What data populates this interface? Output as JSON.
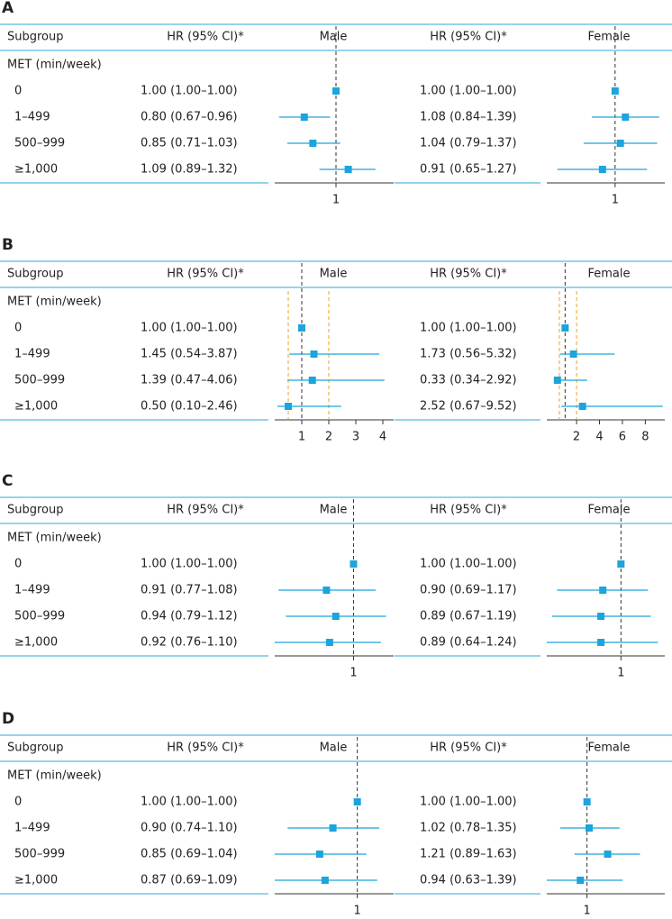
{
  "chart_data": [
    {
      "type": "forest",
      "label": "A",
      "subgroup_header": "Subgroup",
      "hr_header": "HR (95% CI)*",
      "group_label": "MET (min/week)",
      "categories": [
        "0",
        "1–499",
        "500–999",
        "≥1,000"
      ],
      "series": [
        {
          "name": "Male",
          "color": "#1ca4dc",
          "values": [
            1.0,
            0.8,
            0.85,
            1.09
          ],
          "lower": [
            1.0,
            0.67,
            0.71,
            0.89
          ],
          "upper": [
            1.0,
            0.96,
            1.03,
            1.32
          ],
          "value_labels": [
            "1.00 (1.00–1.00)",
            "0.80 (0.67–0.96)",
            "0.85 (0.71–1.03)",
            "1.09 (0.89–1.32)"
          ],
          "log_x": true,
          "xlim": [
            0.65,
            1.5
          ],
          "xticks": [
            1
          ],
          "reference": 1
        },
        {
          "name": "Female",
          "color": "#1ca4dc",
          "values": [
            1.0,
            1.08,
            1.04,
            0.91
          ],
          "lower": [
            1.0,
            0.84,
            0.79,
            0.65
          ],
          "upper": [
            1.0,
            1.39,
            1.37,
            1.27
          ],
          "value_labels": [
            "1.00 (1.00–1.00)",
            "1.08 (0.84–1.39)",
            "1.04 (0.79–1.37)",
            "0.91 (0.65–1.27)"
          ],
          "log_x": true,
          "xlim": [
            0.6,
            1.45
          ],
          "xticks": [
            1
          ],
          "reference": 1
        }
      ]
    },
    {
      "type": "forest",
      "label": "B",
      "subgroup_header": "Subgroup",
      "hr_header": "HR (95% CI)*",
      "group_label": "MET (min/week)",
      "categories": [
        "0",
        "1–499",
        "500–999",
        "≥1,000"
      ],
      "series": [
        {
          "name": "Male",
          "color": "#1ca4dc",
          "values": [
            1.0,
            1.45,
            1.39,
            0.5
          ],
          "lower": [
            1.0,
            0.54,
            0.47,
            0.1
          ],
          "upper": [
            1.0,
            3.87,
            4.06,
            2.46
          ],
          "value_labels": [
            "1.00 (1.00–1.00)",
            "1.45 (0.54–3.87)",
            "1.39 (0.47–4.06)",
            "0.50 (0.10–2.46)"
          ],
          "log_x": false,
          "xlim": [
            0,
            4.4
          ],
          "xticks": [
            1,
            2,
            3,
            4
          ],
          "reference": 1,
          "bounds": [
            0.5,
            2
          ],
          "bounds_color": "#f0a020"
        },
        {
          "name": "Female",
          "color": "#1ca4dc",
          "values": [
            1.0,
            1.73,
            0.33,
            2.52
          ],
          "lower": [
            1.0,
            0.56,
            0.34,
            0.67
          ],
          "upper": [
            1.0,
            5.32,
            2.92,
            9.52
          ],
          "value_labels": [
            "1.00 (1.00–1.00)",
            "1.73 (0.56–5.32)",
            "0.33 (0.34–2.92)",
            "2.52 (0.67–9.52)"
          ],
          "log_x": false,
          "xlim": [
            -0.6,
            9.7
          ],
          "xticks": [
            2,
            4,
            6,
            8
          ],
          "reference": 1,
          "bounds": [
            0.5,
            2
          ],
          "bounds_color": "#f0a020"
        }
      ]
    },
    {
      "type": "forest",
      "label": "C",
      "subgroup_header": "Subgroup",
      "hr_header": "HR (95% CI)*",
      "group_label": "MET (min/week)",
      "categories": [
        "0",
        "1–499",
        "500–999",
        "≥1,000"
      ],
      "series": [
        {
          "name": "Male",
          "color": "#1ca4dc",
          "values": [
            1.0,
            0.91,
            0.94,
            0.92
          ],
          "lower": [
            1.0,
            0.77,
            0.79,
            0.76
          ],
          "upper": [
            1.0,
            1.08,
            1.12,
            1.1
          ],
          "value_labels": [
            "1.00 (1.00–1.00)",
            "0.91 (0.77–1.08)",
            "0.94 (0.79–1.12)",
            "0.92 (0.76–1.10)"
          ],
          "log_x": true,
          "xlim": [
            0.76,
            1.15
          ],
          "xticks": [
            1
          ],
          "reference": 1
        },
        {
          "name": "Female",
          "color": "#1ca4dc",
          "values": [
            1.0,
            0.9,
            0.89,
            0.89
          ],
          "lower": [
            1.0,
            0.69,
            0.67,
            0.64
          ],
          "upper": [
            1.0,
            1.17,
            1.19,
            1.24
          ],
          "value_labels": [
            "1.00 (1.00–1.00)",
            "0.90 (0.69–1.17)",
            "0.89 (0.67–1.19)",
            "0.89 (0.64–1.24)"
          ],
          "log_x": true,
          "xlim": [
            0.65,
            1.29
          ],
          "xticks": [
            1
          ],
          "reference": 1
        }
      ]
    },
    {
      "type": "forest",
      "label": "D",
      "subgroup_header": "Subgroup",
      "hr_header": "HR (95% CI)*",
      "group_label": "MET (min/week)",
      "categories": [
        "0",
        "1–499",
        "500–999",
        "≥1,000"
      ],
      "series": [
        {
          "name": "Male",
          "color": "#1ca4dc",
          "values": [
            1.0,
            0.9,
            0.85,
            0.87
          ],
          "lower": [
            1.0,
            0.74,
            0.69,
            0.69
          ],
          "upper": [
            1.0,
            1.1,
            1.04,
            1.09
          ],
          "value_labels": [
            "1.00 (1.00–1.00)",
            "0.90 (0.74–1.10)",
            "0.85 (0.69–1.04)",
            "0.87 (0.69–1.09)"
          ],
          "log_x": true,
          "xlim": [
            0.7,
            1.17
          ],
          "xticks": [
            1
          ],
          "reference": 1
        },
        {
          "name": "Female",
          "color": "#1ca4dc",
          "values": [
            1.0,
            1.02,
            1.21,
            0.94
          ],
          "lower": [
            1.0,
            0.78,
            0.89,
            0.63
          ],
          "upper": [
            1.0,
            1.35,
            1.63,
            1.39
          ],
          "value_labels": [
            "1.00 (1.00–1.00)",
            "1.02 (0.78–1.35)",
            "1.21 (0.89–1.63)",
            "0.94 (0.63–1.39)"
          ],
          "log_x": true,
          "xlim": [
            0.69,
            2.05
          ],
          "xticks": [
            1
          ],
          "reference": 1
        }
      ]
    }
  ]
}
